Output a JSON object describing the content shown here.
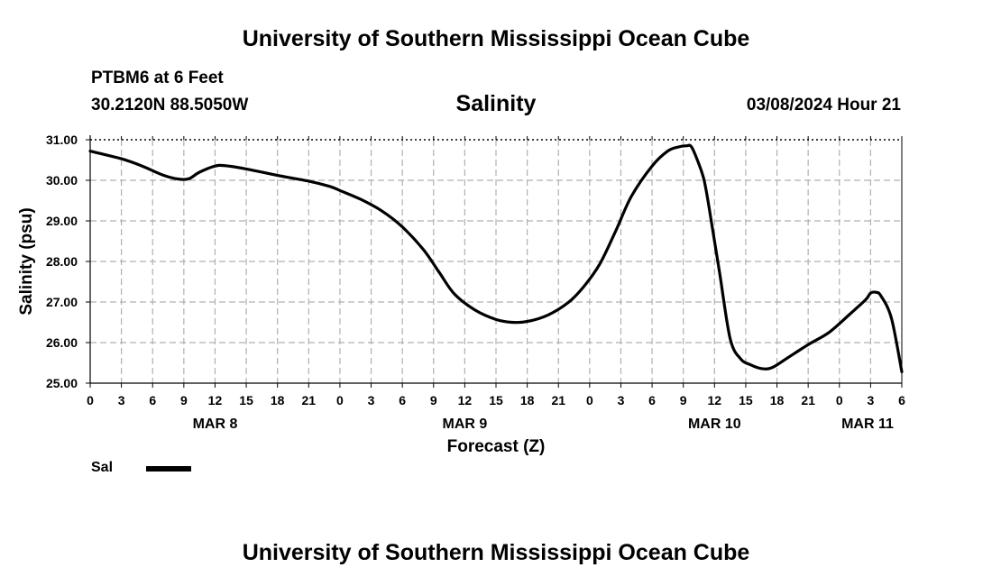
{
  "header": {
    "title": "University of Southern Mississippi Ocean Cube",
    "station": "PTBM6 at 6 Feet",
    "coords": "30.2120N  88.5050W",
    "variable": "Salinity",
    "issued": "03/08/2024 Hour 21"
  },
  "footer": {
    "title": "University of Southern Mississippi Ocean Cube"
  },
  "legend": {
    "series_label": "Sal"
  },
  "colors": {
    "line": "#000000",
    "grid": "#b0b0b0"
  },
  "chart_data": {
    "type": "line",
    "title": "Salinity",
    "xlabel": "Forecast (Z)",
    "ylabel": "Salinity (psu)",
    "x_unit": "hours from Mar 8 00Z",
    "xlim": [
      0,
      78
    ],
    "ylim": [
      25.0,
      31.0
    ],
    "y_ticks": [
      25.0,
      26.0,
      27.0,
      28.0,
      29.0,
      30.0,
      31.0
    ],
    "y_tick_labels": [
      "25.00",
      "26.00",
      "27.00",
      "28.00",
      "29.00",
      "30.00",
      "31.00"
    ],
    "x_tick_labels": [
      "0",
      "3",
      "6",
      "9",
      "12",
      "15",
      "18",
      "21",
      "0",
      "3",
      "6",
      "9",
      "12",
      "15",
      "18",
      "21",
      "0",
      "3",
      "6",
      "9",
      "12",
      "15",
      "18",
      "21",
      "0",
      "3",
      "6"
    ],
    "date_labels": [
      {
        "label": "MAR 8",
        "hour": 12
      },
      {
        "label": "MAR 9",
        "hour": 36
      },
      {
        "label": "MAR 10",
        "hour": 60
      },
      {
        "label": "MAR 11",
        "hour": 78
      }
    ],
    "grid": true,
    "series": [
      {
        "name": "Sal",
        "x": [
          0,
          3,
          5,
          7,
          8.5,
          9.5,
          10.5,
          12,
          13,
          15,
          18,
          21,
          23,
          24,
          26,
          28,
          30,
          32,
          33.5,
          35,
          37,
          39,
          40.5,
          42,
          44,
          46,
          47.5,
          49,
          50.5,
          52,
          54,
          55.5,
          56.5,
          57.3,
          57.8,
          58.5,
          59,
          59.5,
          60.5,
          61.5,
          62.5,
          63.5,
          64.5,
          65.5,
          67,
          69,
          71,
          73,
          74.5,
          75,
          75.5,
          76,
          77,
          78
        ],
        "values": [
          30.72,
          30.53,
          30.35,
          30.13,
          30.03,
          30.04,
          30.2,
          30.35,
          30.36,
          30.28,
          30.12,
          29.98,
          29.85,
          29.75,
          29.53,
          29.25,
          28.85,
          28.3,
          27.75,
          27.2,
          26.8,
          26.57,
          26.5,
          26.52,
          26.68,
          27.0,
          27.4,
          27.95,
          28.75,
          29.6,
          30.35,
          30.72,
          30.82,
          30.85,
          30.82,
          30.4,
          30.0,
          29.3,
          27.7,
          26.1,
          25.6,
          25.45,
          25.36,
          25.38,
          25.62,
          25.95,
          26.25,
          26.7,
          27.05,
          27.22,
          27.24,
          27.15,
          26.6,
          25.28
        ]
      }
    ]
  }
}
